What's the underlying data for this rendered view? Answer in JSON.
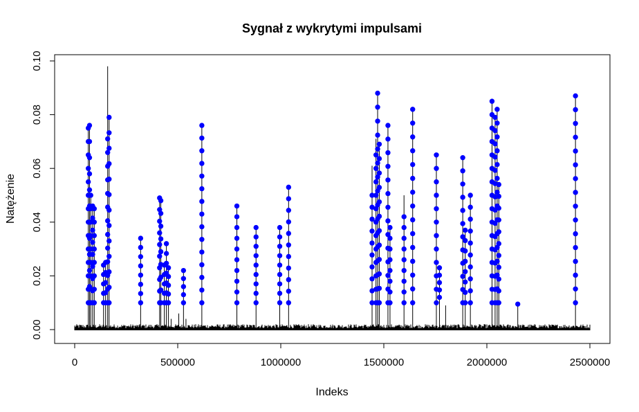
{
  "chart_data": {
    "type": "scatter",
    "title": "Sygnał z wykrytymi impulsami",
    "xlabel": "Indeks",
    "ylabel": "Natężenie",
    "xlim": [
      0,
      2500000
    ],
    "ylim": [
      0,
      0.1
    ],
    "x_ticks": [
      0,
      500000,
      1000000,
      1500000,
      2000000,
      2500000
    ],
    "x_tick_labels": [
      "0",
      "500000",
      "1000000",
      "1500000",
      "2000000",
      "2500000"
    ],
    "y_ticks": [
      0.0,
      0.02,
      0.04,
      0.06,
      0.08,
      0.1
    ],
    "y_tick_labels": [
      "0.00",
      "0.02",
      "0.04",
      "0.06",
      "0.08",
      "0.10"
    ],
    "grid": false,
    "colors": {
      "signal": "#000000",
      "points": "#0000ff"
    },
    "background_noise_max": 0.002,
    "series": [
      {
        "type": "lines",
        "spikes": [
          {
            "x": 66000,
            "y": 0.075
          },
          {
            "x": 72000,
            "y": 0.076
          },
          {
            "x": 78000,
            "y": 0.05
          },
          {
            "x": 87000,
            "y": 0.046
          },
          {
            "x": 95000,
            "y": 0.045
          },
          {
            "x": 140000,
            "y": 0.024
          },
          {
            "x": 150000,
            "y": 0.025
          },
          {
            "x": 160000,
            "y": 0.098
          },
          {
            "x": 167000,
            "y": 0.079
          },
          {
            "x": 320000,
            "y": 0.034
          },
          {
            "x": 412000,
            "y": 0.049
          },
          {
            "x": 418000,
            "y": 0.048
          },
          {
            "x": 435000,
            "y": 0.024
          },
          {
            "x": 445000,
            "y": 0.032
          },
          {
            "x": 455000,
            "y": 0.023
          },
          {
            "x": 468000,
            "y": 0.004
          },
          {
            "x": 505000,
            "y": 0.006
          },
          {
            "x": 528000,
            "y": 0.022
          },
          {
            "x": 540000,
            "y": 0.004
          },
          {
            "x": 617000,
            "y": 0.076
          },
          {
            "x": 787000,
            "y": 0.046
          },
          {
            "x": 880000,
            "y": 0.038
          },
          {
            "x": 995000,
            "y": 0.038
          },
          {
            "x": 1038000,
            "y": 0.053
          },
          {
            "x": 1443000,
            "y": 0.061
          },
          {
            "x": 1462000,
            "y": 0.071
          },
          {
            "x": 1470000,
            "y": 0.088
          },
          {
            "x": 1478000,
            "y": 0.069
          },
          {
            "x": 1520000,
            "y": 0.076
          },
          {
            "x": 1530000,
            "y": 0.038
          },
          {
            "x": 1598000,
            "y": 0.05
          },
          {
            "x": 1640000,
            "y": 0.082
          },
          {
            "x": 1755000,
            "y": 0.065
          },
          {
            "x": 1770000,
            "y": 0.023
          },
          {
            "x": 1800000,
            "y": 0.009
          },
          {
            "x": 1883000,
            "y": 0.064
          },
          {
            "x": 1895000,
            "y": 0.037
          },
          {
            "x": 1920000,
            "y": 0.05
          },
          {
            "x": 2025000,
            "y": 0.085
          },
          {
            "x": 2040000,
            "y": 0.079
          },
          {
            "x": 2050000,
            "y": 0.082
          },
          {
            "x": 2058000,
            "y": 0.054
          },
          {
            "x": 2150000,
            "y": 0.01
          },
          {
            "x": 2430000,
            "y": 0.087
          }
        ]
      },
      {
        "type": "points",
        "clusters": [
          {
            "x": 66000,
            "ymin": 0.01,
            "ymax": 0.075,
            "n": 14
          },
          {
            "x": 72000,
            "ymin": 0.01,
            "ymax": 0.076,
            "n": 12
          },
          {
            "x": 78000,
            "ymin": 0.01,
            "ymax": 0.05,
            "n": 9
          },
          {
            "x": 87000,
            "ymin": 0.01,
            "ymax": 0.046,
            "n": 9
          },
          {
            "x": 95000,
            "ymin": 0.01,
            "ymax": 0.045,
            "n": 8
          },
          {
            "x": 140000,
            "ymin": 0.01,
            "ymax": 0.024,
            "n": 5
          },
          {
            "x": 150000,
            "ymin": 0.01,
            "ymax": 0.025,
            "n": 5
          },
          {
            "x": 160000,
            "ymin": 0.01,
            "ymax": 0.071,
            "n": 13
          },
          {
            "x": 167000,
            "ymin": 0.01,
            "ymax": 0.079,
            "n": 13
          },
          {
            "x": 320000,
            "ymin": 0.01,
            "ymax": 0.034,
            "n": 8
          },
          {
            "x": 412000,
            "ymin": 0.01,
            "ymax": 0.049,
            "n": 10
          },
          {
            "x": 418000,
            "ymin": 0.01,
            "ymax": 0.048,
            "n": 9
          },
          {
            "x": 435000,
            "ymin": 0.01,
            "ymax": 0.024,
            "n": 5
          },
          {
            "x": 445000,
            "ymin": 0.01,
            "ymax": 0.032,
            "n": 7
          },
          {
            "x": 455000,
            "ymin": 0.01,
            "ymax": 0.023,
            "n": 5
          },
          {
            "x": 528000,
            "ymin": 0.01,
            "ymax": 0.022,
            "n": 5
          },
          {
            "x": 617000,
            "ymin": 0.01,
            "ymax": 0.076,
            "n": 15
          },
          {
            "x": 787000,
            "ymin": 0.01,
            "ymax": 0.046,
            "n": 10
          },
          {
            "x": 880000,
            "ymin": 0.01,
            "ymax": 0.038,
            "n": 9
          },
          {
            "x": 995000,
            "ymin": 0.01,
            "ymax": 0.038,
            "n": 9
          },
          {
            "x": 1038000,
            "ymin": 0.01,
            "ymax": 0.053,
            "n": 11
          },
          {
            "x": 1443000,
            "ymin": 0.01,
            "ymax": 0.05,
            "n": 10
          },
          {
            "x": 1462000,
            "ymin": 0.01,
            "ymax": 0.065,
            "n": 12
          },
          {
            "x": 1470000,
            "ymin": 0.01,
            "ymax": 0.088,
            "n": 16
          },
          {
            "x": 1478000,
            "ymin": 0.01,
            "ymax": 0.069,
            "n": 12
          },
          {
            "x": 1520000,
            "ymin": 0.01,
            "ymax": 0.076,
            "n": 14
          },
          {
            "x": 1530000,
            "ymin": 0.01,
            "ymax": 0.038,
            "n": 8
          },
          {
            "x": 1598000,
            "ymin": 0.01,
            "ymax": 0.042,
            "n": 9
          },
          {
            "x": 1640000,
            "ymin": 0.01,
            "ymax": 0.082,
            "n": 15
          },
          {
            "x": 1755000,
            "ymin": 0.01,
            "ymax": 0.065,
            "n": 12
          },
          {
            "x": 1770000,
            "ymin": 0.012,
            "ymax": 0.023,
            "n": 5
          },
          {
            "x": 1883000,
            "ymin": 0.01,
            "ymax": 0.064,
            "n": 12
          },
          {
            "x": 1895000,
            "ymin": 0.01,
            "ymax": 0.037,
            "n": 8
          },
          {
            "x": 1920000,
            "ymin": 0.01,
            "ymax": 0.05,
            "n": 10
          },
          {
            "x": 2025000,
            "ymin": 0.01,
            "ymax": 0.085,
            "n": 16
          },
          {
            "x": 2040000,
            "ymin": 0.01,
            "ymax": 0.079,
            "n": 15
          },
          {
            "x": 2050000,
            "ymin": 0.01,
            "ymax": 0.082,
            "n": 15
          },
          {
            "x": 2058000,
            "ymin": 0.01,
            "ymax": 0.054,
            "n": 11
          },
          {
            "x": 2150000,
            "ymin": 0.0095,
            "ymax": 0.0095,
            "n": 1
          },
          {
            "x": 2430000,
            "ymin": 0.01,
            "ymax": 0.087,
            "n": 16
          }
        ]
      }
    ]
  }
}
